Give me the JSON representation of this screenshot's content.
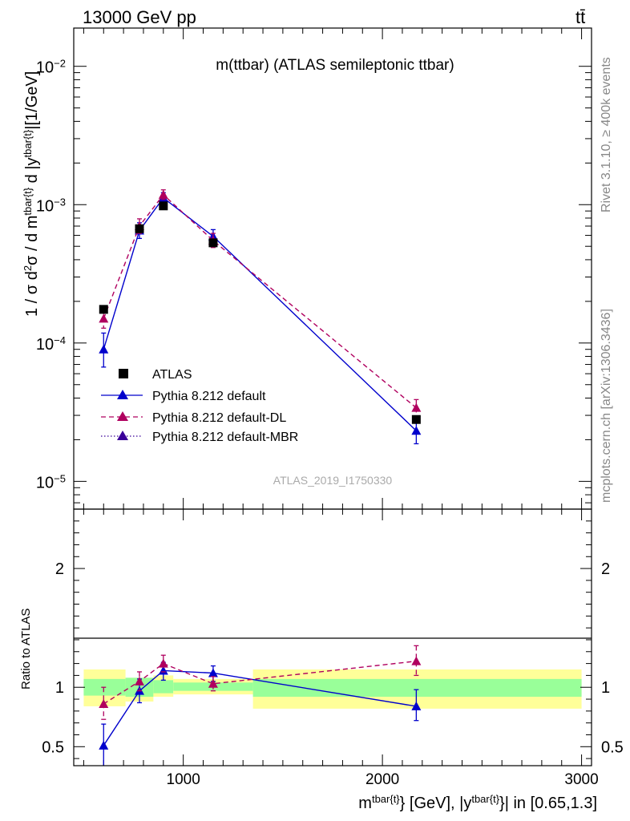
{
  "header": {
    "energy_label": "13000 GeV pp",
    "process_label": "tt̄",
    "plot_title": "m(ttbar) (ATLAS semileptonic ttbar)",
    "analysis_id": "ATLAS_2019_I1750330"
  },
  "side_labels": {
    "rivet": "Rivet 3.1.10, ≥ 400k events",
    "mcplots": "mcplots.cern.ch [arXiv:1306.3436]"
  },
  "axes": {
    "main_ylabel": "1 / σ d²σ / d m^{tbar{t}} d |y^{tbar{t}}|[1/GeV]",
    "ratio_ylabel": "Ratio to ATLAS",
    "xlabel": "m^{tbar{t}} [GeV], |y^{tbar{t}}| in [0.65,1.3]"
  },
  "legend": [
    {
      "label": "ATLAS"
    },
    {
      "label": "Pythia 8.212 default"
    },
    {
      "label": "Pythia 8.212 default-DL"
    },
    {
      "label": "Pythia 8.212 default-MBR"
    }
  ],
  "colors": {
    "data": "#000000",
    "default": "#0000cc",
    "dl": "#b0005f",
    "mbr": "#3a0099",
    "band_inner": "#99ff99",
    "band_outer": "#ffff99"
  },
  "chart_data": [
    {
      "type": "line",
      "scale": "log",
      "title": "m(ttbar) (ATLAS semileptonic ttbar)",
      "xlim": [
        450,
        3050
      ],
      "ylim": [
        6.3e-06,
        0.0189
      ],
      "y_ticks": [
        {
          "v": 1e-05,
          "m": "10",
          "e": "−5"
        },
        {
          "v": 0.0001,
          "m": "10",
          "e": "−4"
        },
        {
          "v": 0.001,
          "m": "10",
          "e": "−3"
        },
        {
          "v": 0.01,
          "m": "10",
          "e": "−2"
        }
      ],
      "data": {
        "name": "ATLAS",
        "x": [
          600,
          780,
          900,
          1150,
          2170
        ],
        "y": [
          0.000175,
          0.00067,
          0.00098,
          0.00053,
          2.8e-05
        ]
      },
      "series": [
        {
          "name": "Pythia 8.212 default",
          "style": "solid",
          "x": [
            600,
            780,
            900,
            1150,
            2170
          ],
          "y": [
            9e-05,
            0.00065,
            0.00112,
            0.00059,
            2.32e-05
          ],
          "err_lo": [
            2.3e-05,
            8e-05,
            9e-05,
            6e-05,
            4.5e-06
          ],
          "err_hi": [
            2.8e-05,
            9e-05,
            0.0001,
            7e-05,
            5e-06
          ]
        },
        {
          "name": "Pythia 8.212 default-DL",
          "style": "dashed",
          "x": [
            600,
            780,
            900,
            1150,
            2170
          ],
          "y": [
            0.00015,
            0.0007,
            0.00118,
            0.00055,
            3.4e-05
          ],
          "err_lo": [
            2.2e-05,
            8e-05,
            9e-05,
            6e-05,
            4.5e-06
          ],
          "err_hi": [
            2.5e-05,
            9e-05,
            0.0001,
            7e-05,
            5e-06
          ]
        },
        {
          "name": "Pythia 8.212 default-MBR",
          "style": "dotted",
          "x": [],
          "y": []
        }
      ]
    },
    {
      "type": "line",
      "title": "Ratio to ATLAS",
      "xlim": [
        450,
        3050
      ],
      "ylim": [
        0.34,
        2.5
      ],
      "y_ticks": [
        0.5,
        1,
        2
      ],
      "x_ticks": [
        1000,
        2000,
        3000
      ],
      "band": {
        "edges": [
          500,
          710,
          850,
          950,
          1350,
          3000
        ],
        "inner_lo": [
          0.93,
          0.92,
          0.95,
          0.97,
          0.92
        ],
        "inner_hi": [
          1.07,
          1.08,
          1.06,
          1.04,
          1.07
        ],
        "outer_lo": [
          0.84,
          0.88,
          0.92,
          0.94,
          0.82
        ],
        "outer_hi": [
          1.15,
          1.08,
          1.1,
          1.07,
          1.15
        ]
      },
      "series": [
        {
          "name": "Pythia 8.212 default",
          "style": "solid",
          "x": [
            600,
            780,
            900,
            1150,
            2170
          ],
          "y": [
            0.51,
            0.97,
            1.14,
            1.12,
            0.84
          ],
          "err_lo": [
            0.18,
            0.1,
            0.08,
            0.07,
            0.12
          ],
          "err_hi": [
            0.18,
            0.1,
            0.07,
            0.06,
            0.14
          ]
        },
        {
          "name": "Pythia 8.212 default-DL",
          "style": "dashed",
          "x": [
            600,
            780,
            900,
            1150,
            2170
          ],
          "y": [
            0.86,
            1.05,
            1.2,
            1.03,
            1.22
          ],
          "err_lo": [
            0.13,
            0.08,
            0.07,
            0.06,
            0.12
          ],
          "err_hi": [
            0.14,
            0.08,
            0.07,
            0.06,
            0.13
          ]
        }
      ]
    }
  ]
}
